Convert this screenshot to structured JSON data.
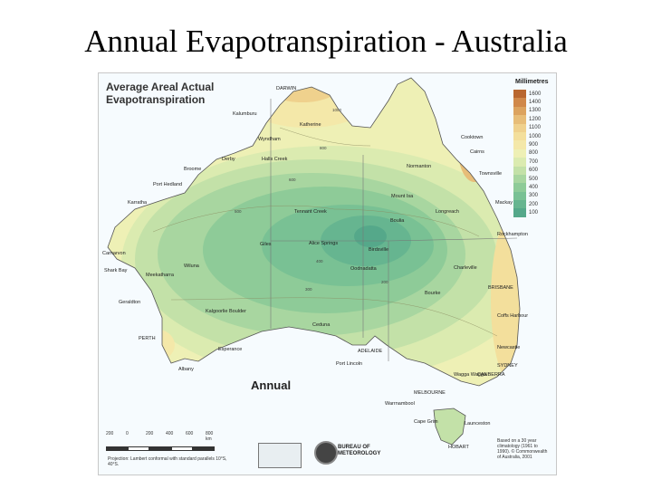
{
  "slide": {
    "title": "Annual Evapotranspiration - Australia"
  },
  "map": {
    "heading_line1": "Average Areal Actual",
    "heading_line2": "Evapotranspiration",
    "season": "Annual",
    "legend": {
      "title": "Millimetres",
      "entries": [
        {
          "value": "1600",
          "color": "#b9672f"
        },
        {
          "value": "1400",
          "color": "#d0884a"
        },
        {
          "value": "1300",
          "color": "#dca35f"
        },
        {
          "value": "1200",
          "color": "#e7bd78"
        },
        {
          "value": "1100",
          "color": "#efd18d"
        },
        {
          "value": "1000",
          "color": "#f3df9c"
        },
        {
          "value": "900",
          "color": "#f4e8a9"
        },
        {
          "value": "800",
          "color": "#eef0b5"
        },
        {
          "value": "700",
          "color": "#dbebb0"
        },
        {
          "value": "600",
          "color": "#c3e1a8"
        },
        {
          "value": "500",
          "color": "#a8d6a0"
        },
        {
          "value": "400",
          "color": "#8ecb98"
        },
        {
          "value": "300",
          "color": "#79c194"
        },
        {
          "value": "200",
          "color": "#66b590"
        },
        {
          "value": "100",
          "color": "#55a88a"
        }
      ]
    },
    "places": [
      {
        "name": "DARWIN"
      },
      {
        "name": "Katherine"
      },
      {
        "name": "Kalumburu"
      },
      {
        "name": "Wyndham"
      },
      {
        "name": "Derby"
      },
      {
        "name": "Halls Creek"
      },
      {
        "name": "Broome"
      },
      {
        "name": "Port Hedland"
      },
      {
        "name": "Karratha"
      },
      {
        "name": "Tennant Creek"
      },
      {
        "name": "Alice Springs"
      },
      {
        "name": "Giles"
      },
      {
        "name": "Mount Isa"
      },
      {
        "name": "Normanton"
      },
      {
        "name": "Cooktown"
      },
      {
        "name": "Cairns"
      },
      {
        "name": "Townsville"
      },
      {
        "name": "Mackay"
      },
      {
        "name": "Rockhampton"
      },
      {
        "name": "Longreach"
      },
      {
        "name": "Boulia"
      },
      {
        "name": "Birdsville"
      },
      {
        "name": "Oodnadatta"
      },
      {
        "name": "Charleville"
      },
      {
        "name": "Bourke"
      },
      {
        "name": "BRISBANE"
      },
      {
        "name": "Coffs Harbour"
      },
      {
        "name": "Newcastle"
      },
      {
        "name": "SYDNEY"
      },
      {
        "name": "CANBERRA"
      },
      {
        "name": "MELBOURNE"
      },
      {
        "name": "ADELAIDE"
      },
      {
        "name": "HOBART"
      },
      {
        "name": "PERTH"
      },
      {
        "name": "Albany"
      },
      {
        "name": "Esperance"
      },
      {
        "name": "Kalgoorlie Boulder"
      },
      {
        "name": "Geraldton"
      },
      {
        "name": "Carnarvon"
      },
      {
        "name": "Shark Bay"
      },
      {
        "name": "Meekatharra"
      },
      {
        "name": "Wiluna"
      },
      {
        "name": "Port Lincoln"
      },
      {
        "name": "Ceduna"
      },
      {
        "name": "Wagga Wagga"
      },
      {
        "name": "Warrnambool"
      },
      {
        "name": "Cape Grim"
      },
      {
        "name": "Launceston"
      }
    ],
    "isolines": [
      "1000",
      "800",
      "600",
      "500",
      "400",
      "300",
      "200"
    ],
    "scale": {
      "labels": [
        "200",
        "0",
        "200",
        "400",
        "600",
        "800 km"
      ]
    },
    "projection_note": "Projection: Lambert conformal with standard parallels 10°S, 40°S.",
    "agency": "BUREAU OF METEOROLOGY",
    "footnote": "Based on a 30 year climatology (1961 to 1990). © Commonwealth of Australia, 2001"
  }
}
